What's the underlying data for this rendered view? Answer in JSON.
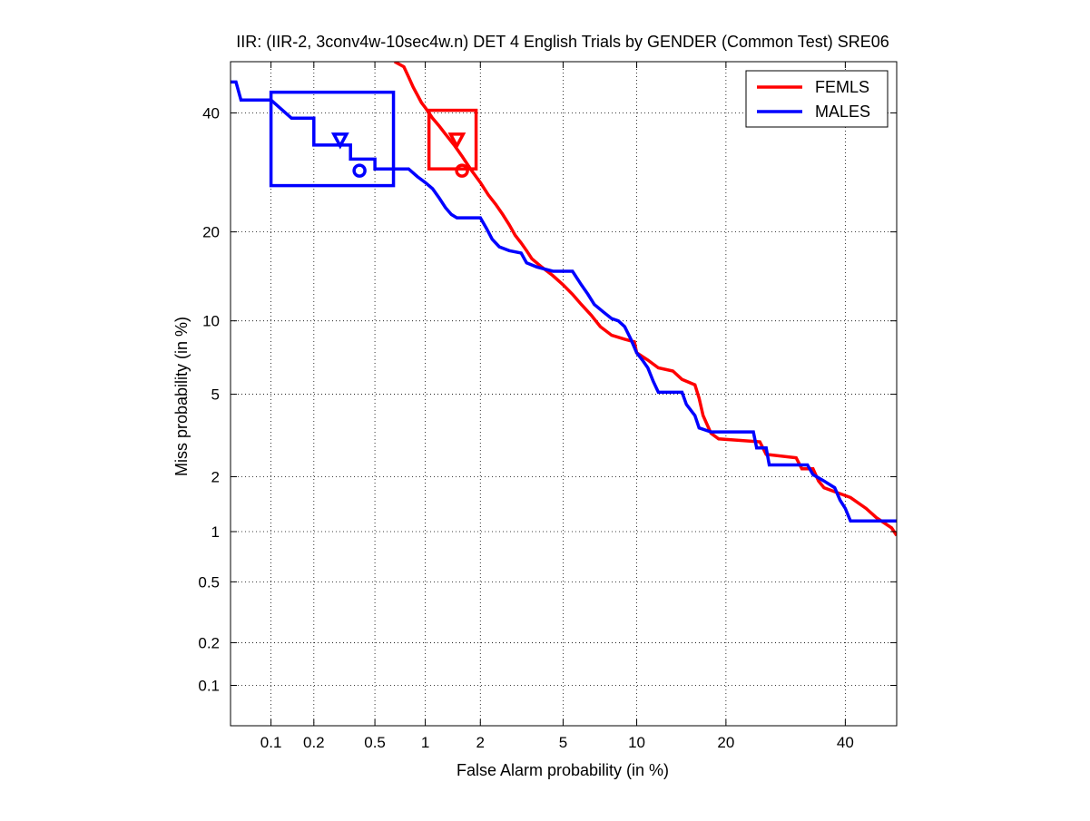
{
  "chart_data": {
    "type": "line",
    "scale": "normal-deviate (DET)",
    "title": "IIR: (IIR-2, 3conv4w-10sec4w.n) DET 4 English Trials by GENDER (Common Test) SRE06",
    "xlabel": "False Alarm probability (in %)",
    "ylabel": "Miss probability (in %)",
    "xlim": [
      0.05,
      50
    ],
    "ylim": [
      0.05,
      50
    ],
    "x_ticks": [
      {
        "value": 0.1,
        "label": "0.1"
      },
      {
        "value": 0.2,
        "label": "0.2"
      },
      {
        "value": 0.5,
        "label": "0.5"
      },
      {
        "value": 1,
        "label": "1"
      },
      {
        "value": 2,
        "label": "2"
      },
      {
        "value": 5,
        "label": "5"
      },
      {
        "value": 10,
        "label": "10"
      },
      {
        "value": 20,
        "label": "20"
      },
      {
        "value": 40,
        "label": "40"
      }
    ],
    "y_ticks": [
      {
        "value": 0.1,
        "label": "0.1"
      },
      {
        "value": 0.2,
        "label": "0.2"
      },
      {
        "value": 0.5,
        "label": "0.5"
      },
      {
        "value": 1,
        "label": "1"
      },
      {
        "value": 2,
        "label": "2"
      },
      {
        "value": 5,
        "label": "5"
      },
      {
        "value": 10,
        "label": "10"
      },
      {
        "value": 20,
        "label": "20"
      },
      {
        "value": 40,
        "label": "40"
      }
    ],
    "grid": true,
    "legend_position": "top-right",
    "series": [
      {
        "name": "FEMLS",
        "color": "#ff0000",
        "points": [
          [
            0.66,
            50
          ],
          [
            0.75,
            49
          ],
          [
            0.8,
            47
          ],
          [
            0.85,
            45
          ],
          [
            0.9,
            43.5
          ],
          [
            0.95,
            42
          ],
          [
            1.0,
            41
          ],
          [
            1.05,
            40
          ],
          [
            1.1,
            39
          ],
          [
            1.2,
            37.5
          ],
          [
            1.3,
            36
          ],
          [
            1.45,
            34
          ],
          [
            1.6,
            32
          ],
          [
            1.8,
            29.5
          ],
          [
            2.0,
            27.5
          ],
          [
            2.2,
            25.5
          ],
          [
            2.4,
            24
          ],
          [
            2.6,
            22.5
          ],
          [
            2.8,
            21
          ],
          [
            3.0,
            19.5
          ],
          [
            3.2,
            18.5
          ],
          [
            3.4,
            17.5
          ],
          [
            3.6,
            16.5
          ],
          [
            4.0,
            15.5
          ],
          [
            4.5,
            14.5
          ],
          [
            5.0,
            13.5
          ],
          [
            5.5,
            12.5
          ],
          [
            6.0,
            11.5
          ],
          [
            6.6,
            10.5
          ],
          [
            7.2,
            9.5
          ],
          [
            8.0,
            8.8
          ],
          [
            9.0,
            8.5
          ],
          [
            9.8,
            8.3
          ],
          [
            10.0,
            7.5
          ],
          [
            11.0,
            7.0
          ],
          [
            12.0,
            6.5
          ],
          [
            13.5,
            6.3
          ],
          [
            14.5,
            5.8
          ],
          [
            16.0,
            5.5
          ],
          [
            16.5,
            4.8
          ],
          [
            17.0,
            4.0
          ],
          [
            18.0,
            3.3
          ],
          [
            19.0,
            3.1
          ],
          [
            25.0,
            3.0
          ],
          [
            26.0,
            2.6
          ],
          [
            31.0,
            2.5
          ],
          [
            32.0,
            2.2
          ],
          [
            34.0,
            2.2
          ],
          [
            35.0,
            1.9
          ],
          [
            36.0,
            1.75
          ],
          [
            41.0,
            1.55
          ],
          [
            44.0,
            1.35
          ],
          [
            46.0,
            1.2
          ],
          [
            49.0,
            1.05
          ],
          [
            50.0,
            0.95
          ]
        ]
      },
      {
        "name": "MALES",
        "color": "#0000ff",
        "points": [
          [
            0.05,
            46
          ],
          [
            0.055,
            46
          ],
          [
            0.06,
            42.5
          ],
          [
            0.1,
            42.5
          ],
          [
            0.14,
            39
          ],
          [
            0.2,
            39
          ],
          [
            0.2,
            34
          ],
          [
            0.35,
            34
          ],
          [
            0.35,
            31.5
          ],
          [
            0.5,
            31.5
          ],
          [
            0.5,
            29.8
          ],
          [
            0.8,
            29.8
          ],
          [
            0.9,
            28.5
          ],
          [
            1.0,
            27.5
          ],
          [
            1.1,
            26.5
          ],
          [
            1.2,
            25
          ],
          [
            1.3,
            23.5
          ],
          [
            1.4,
            22.5
          ],
          [
            1.5,
            22.0
          ],
          [
            2.0,
            22.0
          ],
          [
            2.15,
            20.5
          ],
          [
            2.3,
            19.0
          ],
          [
            2.5,
            18.0
          ],
          [
            2.8,
            17.5
          ],
          [
            3.2,
            17.2
          ],
          [
            3.4,
            16.0
          ],
          [
            3.8,
            15.5
          ],
          [
            4.5,
            15.0
          ],
          [
            5.5,
            15.0
          ],
          [
            6.0,
            13.5
          ],
          [
            6.4,
            12.5
          ],
          [
            6.8,
            11.5
          ],
          [
            7.4,
            10.8
          ],
          [
            8.0,
            10.2
          ],
          [
            8.5,
            10.0
          ],
          [
            9.0,
            9.5
          ],
          [
            9.5,
            8.5
          ],
          [
            10.0,
            7.5
          ],
          [
            10.5,
            7.0
          ],
          [
            11.0,
            6.5
          ],
          [
            11.5,
            5.7
          ],
          [
            12.0,
            5.1
          ],
          [
            14.5,
            5.1
          ],
          [
            15.0,
            4.5
          ],
          [
            16.0,
            4.0
          ],
          [
            16.5,
            3.5
          ],
          [
            18.0,
            3.35
          ],
          [
            24.0,
            3.35
          ],
          [
            24.5,
            2.8
          ],
          [
            26.0,
            2.8
          ],
          [
            26.5,
            2.3
          ],
          [
            33.0,
            2.3
          ],
          [
            34.0,
            2.05
          ],
          [
            36.0,
            1.9
          ],
          [
            38.0,
            1.75
          ],
          [
            39.0,
            1.5
          ],
          [
            40.0,
            1.35
          ],
          [
            41.0,
            1.15
          ],
          [
            48.0,
            1.15
          ],
          [
            50.0,
            1.15
          ]
        ]
      }
    ],
    "markers": [
      {
        "series": "FEMLS",
        "shape": "triangle-down",
        "x": 1.5,
        "y": 35
      },
      {
        "series": "FEMLS",
        "shape": "circle",
        "x": 1.6,
        "y": 29.5
      },
      {
        "series": "MALES",
        "shape": "triangle-down",
        "x": 0.3,
        "y": 35
      },
      {
        "series": "MALES",
        "shape": "circle",
        "x": 0.4,
        "y": 29.5
      }
    ],
    "confidence_boxes": [
      {
        "series": "FEMLS",
        "x_range": [
          1.05,
          1.9
        ],
        "y_range": [
          29.8,
          40.5
        ]
      },
      {
        "series": "MALES",
        "x_range": [
          0.1,
          0.65
        ],
        "y_range": [
          27,
          44
        ]
      }
    ]
  }
}
